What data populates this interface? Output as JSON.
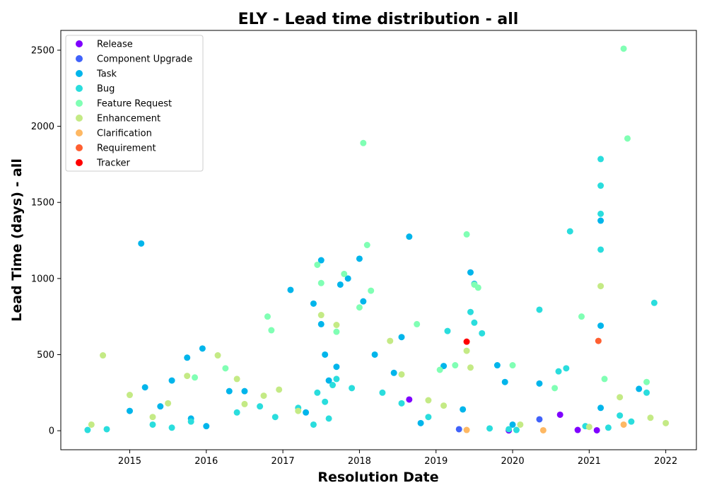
{
  "chart_data": {
    "type": "scatter",
    "title": "ELY - Lead time distribution - all",
    "xlabel": "Resolution Date",
    "ylabel": "Lead Time (days) - all",
    "xlim": [
      2014.1,
      2022.4
    ],
    "ylim": [
      -125,
      2630
    ],
    "xticks": [
      2015,
      2016,
      2017,
      2018,
      2019,
      2020,
      2021,
      2022
    ],
    "yticks": [
      0,
      500,
      1000,
      1500,
      2000,
      2500
    ],
    "grid": false,
    "legend_position": "top-left",
    "series": [
      {
        "name": "Release",
        "color": "#7f00ff",
        "x": [
          2018.65,
          2020.62,
          2020.85,
          2019.95,
          2021.1
        ],
        "y": [
          205,
          105,
          5,
          2,
          3
        ]
      },
      {
        "name": "Component Upgrade",
        "color": "#4062fa",
        "x": [
          2020.35,
          2019.3
        ],
        "y": [
          75,
          10
        ]
      },
      {
        "name": "Task",
        "color": "#00b5eb",
        "x": [
          2015.15,
          2015.55,
          2015.95,
          2015.75,
          2016.3,
          2017.1,
          2017.4,
          2017.5,
          2017.5,
          2017.55,
          2017.7,
          2017.75,
          2017.85,
          2018.0,
          2018.05,
          2018.65,
          2018.55,
          2019.1,
          2019.45,
          2019.5,
          2019.8,
          2019.9,
          2020.35,
          2021.15,
          2021.15,
          2021.15,
          2021.65,
          2015.2,
          2015.4,
          2016.5,
          2017.6,
          2018.2,
          2018.45,
          2016.0,
          2015.8,
          2015.0,
          2017.3,
          2018.8,
          2019.35,
          2020.0
        ],
        "y": [
          1230,
          330,
          540,
          480,
          260,
          925,
          835,
          1120,
          700,
          500,
          420,
          960,
          1000,
          1130,
          850,
          1275,
          615,
          425,
          1040,
          965,
          430,
          320,
          310,
          1380,
          690,
          150,
          275,
          285,
          160,
          260,
          330,
          500,
          380,
          30,
          80,
          130,
          120,
          50,
          140,
          40
        ]
      },
      {
        "name": "Bug",
        "color": "#2adddd",
        "x": [
          2014.45,
          2014.7,
          2015.3,
          2015.8,
          2016.4,
          2016.9,
          2017.2,
          2017.45,
          2017.55,
          2017.65,
          2017.7,
          2017.9,
          2018.3,
          2018.55,
          2019.15,
          2019.45,
          2019.5,
          2019.6,
          2020.35,
          2020.6,
          2020.7,
          2020.75,
          2021.15,
          2021.15,
          2021.15,
          2021.15,
          2021.25,
          2021.75,
          2021.85,
          2021.4,
          2019.95,
          2020.05,
          2020.95,
          2021.55,
          2017.6,
          2017.4,
          2016.7,
          2015.55,
          2018.9,
          2019.7
        ],
        "y": [
          5,
          10,
          40,
          60,
          120,
          90,
          150,
          250,
          190,
          300,
          340,
          280,
          250,
          180,
          655,
          780,
          710,
          640,
          795,
          390,
          410,
          1310,
          1785,
          1610,
          1425,
          1190,
          20,
          250,
          840,
          100,
          10,
          5,
          30,
          60,
          80,
          40,
          160,
          20,
          90,
          15
        ]
      },
      {
        "name": "Feature Request",
        "color": "#80ffb4",
        "x": [
          2016.8,
          2016.85,
          2017.45,
          2017.5,
          2017.7,
          2018.05,
          2018.1,
          2018.15,
          2018.75,
          2019.4,
          2019.5,
          2019.55,
          2020.0,
          2020.9,
          2021.45,
          2021.5,
          2021.2,
          2017.8,
          2018.0,
          2016.25,
          2015.85,
          2019.05,
          2019.25,
          2020.55,
          2021.75
        ],
        "y": [
          750,
          660,
          1090,
          970,
          650,
          1890,
          1220,
          920,
          700,
          1290,
          960,
          940,
          430,
          750,
          2510,
          1920,
          340,
          1030,
          810,
          410,
          350,
          400,
          430,
          280,
          320
        ]
      },
      {
        "name": "Enhancement",
        "color": "#c4ea85",
        "x": [
          2014.65,
          2015.0,
          2015.75,
          2016.15,
          2016.75,
          2016.95,
          2017.5,
          2017.7,
          2018.4,
          2018.55,
          2019.4,
          2019.45,
          2021.15,
          2021.4,
          2021.8,
          2022.0,
          2014.5,
          2015.5,
          2016.5,
          2017.2,
          2018.9,
          2019.1,
          2020.1,
          2021.0,
          2016.4,
          2015.3
        ],
        "y": [
          495,
          235,
          360,
          495,
          230,
          270,
          760,
          695,
          590,
          370,
          525,
          415,
          950,
          220,
          85,
          50,
          40,
          180,
          175,
          130,
          200,
          165,
          40,
          25,
          340,
          90
        ]
      },
      {
        "name": "Clarification",
        "color": "#feb863",
        "x": [
          2019.4,
          2020.4,
          2021.45
        ],
        "y": [
          5,
          3,
          40
        ]
      },
      {
        "name": "Requirement",
        "color": "#ff5f31",
        "x": [
          2021.12
        ],
        "y": [
          590
        ]
      },
      {
        "name": "Tracker",
        "color": "#ff0000",
        "x": [
          2019.4
        ],
        "y": [
          585
        ]
      }
    ]
  }
}
